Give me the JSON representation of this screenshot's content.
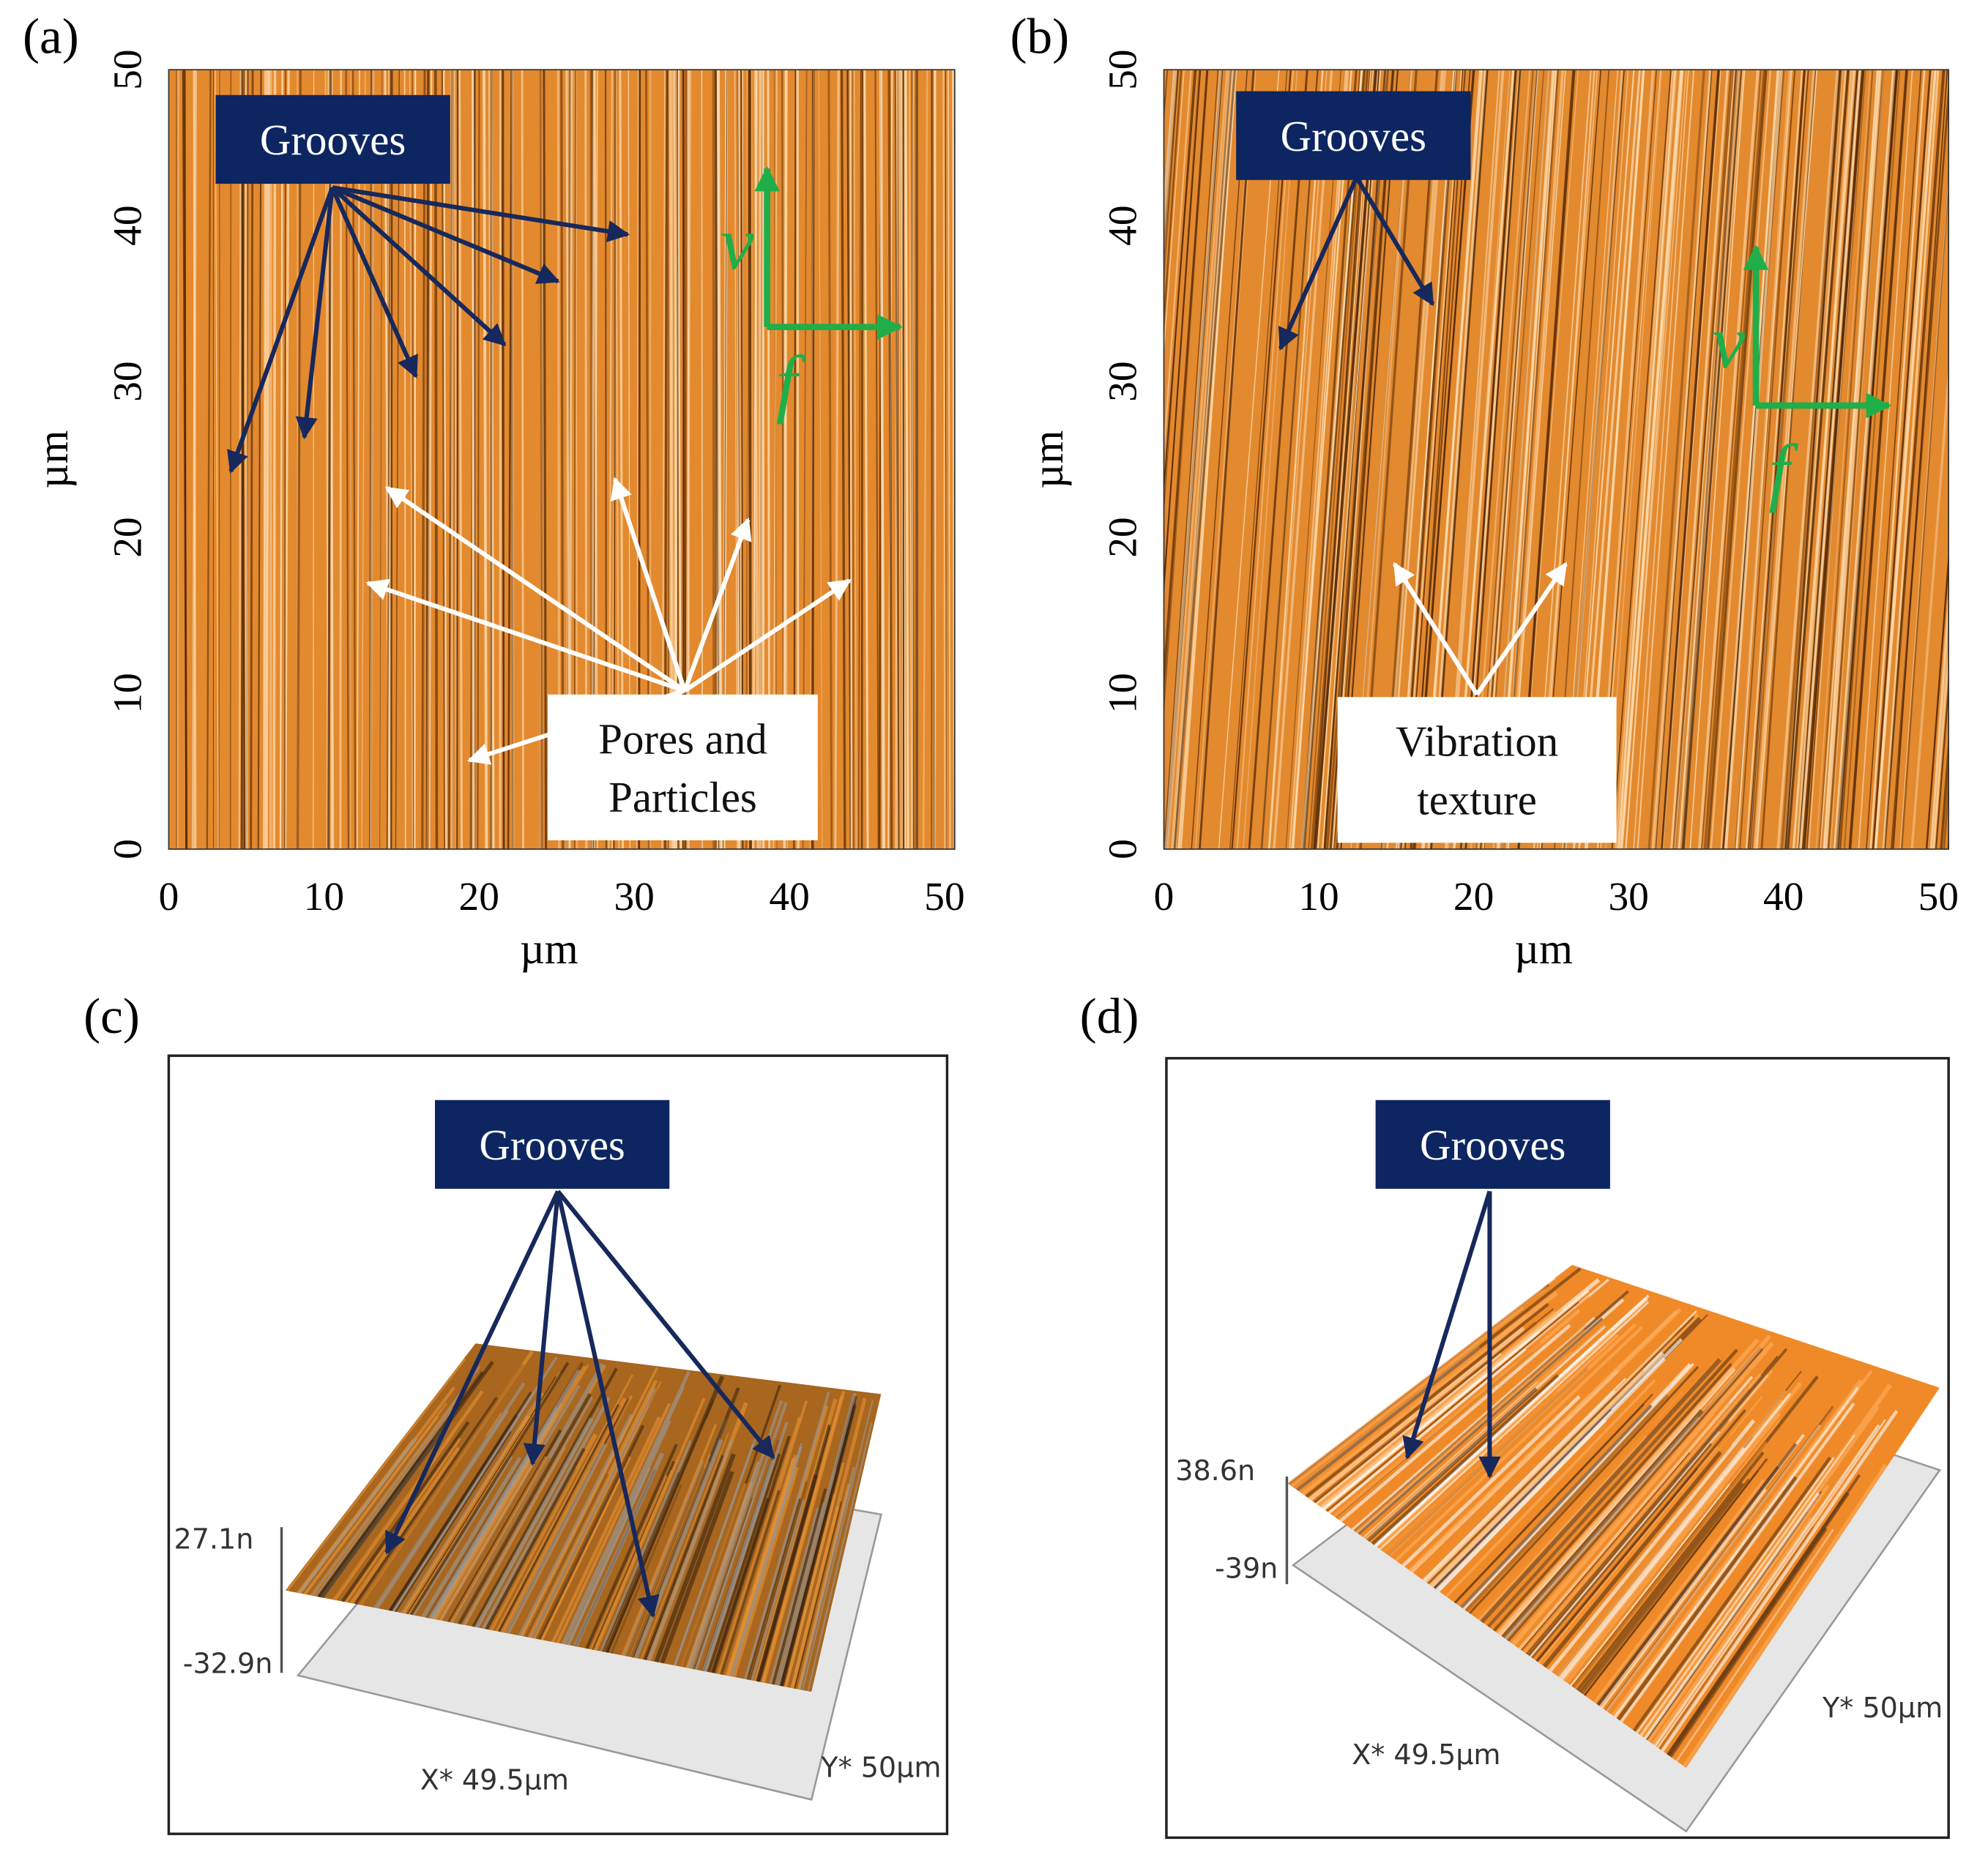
{
  "panels": [
    {
      "label": "(a)",
      "x_ticks": [
        0,
        10,
        20,
        30,
        40,
        50
      ],
      "y_ticks": [
        0,
        10,
        20,
        30,
        40,
        50
      ],
      "x_axis_label": "µm",
      "y_axis_label": "µm",
      "grooves": "Grooves",
      "callout": [
        "Pores and",
        "Particles"
      ],
      "v": "v",
      "f": "f"
    },
    {
      "label": "(b)",
      "x_ticks": [
        0,
        10,
        20,
        30,
        40,
        50
      ],
      "y_ticks": [
        0,
        10,
        20,
        30,
        40,
        50
      ],
      "x_axis_label": "µm",
      "y_axis_label": "µm",
      "grooves": "Grooves",
      "callout": [
        "Vibration",
        "texture"
      ],
      "v": "v",
      "f": "f"
    },
    {
      "label": "(c)",
      "grooves": "Grooves",
      "z_max": "27.1n",
      "z_min": "-32.9n",
      "x_extent": "X* 49.5µm",
      "y_extent": "Y* 50µm"
    },
    {
      "label": "(d)",
      "grooves": "Grooves",
      "z_max": "38.6n",
      "z_min": "-39n",
      "x_extent": "X* 49.5µm",
      "y_extent": "Y* 50µm"
    }
  ]
}
